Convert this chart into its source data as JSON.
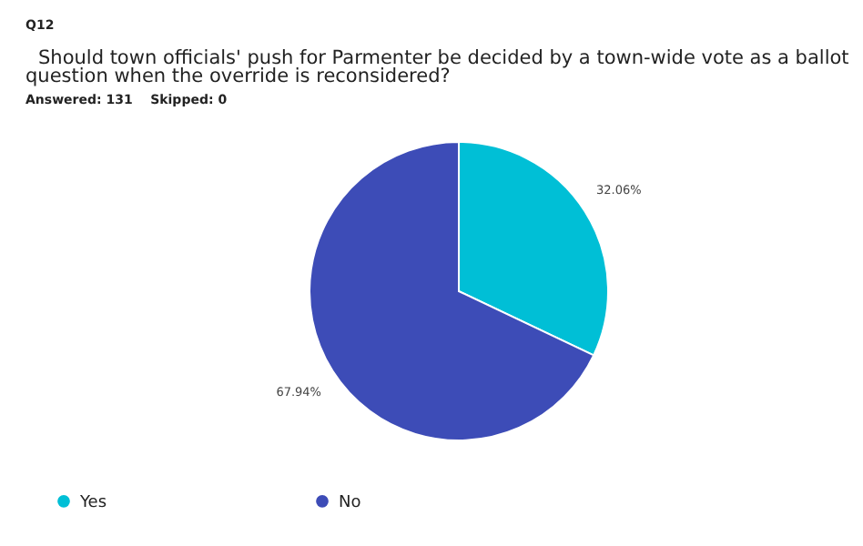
{
  "chart_data": {
    "type": "pie",
    "title": "Q12",
    "subtitle": "Should town officials' push for Parmenter be decided by a town-wide vote as a ballot question when the override is reconsidered?",
    "annotations": [
      "Answered: 131    Skipped: 0"
    ],
    "categories": [
      "Yes",
      "No"
    ],
    "values": [
      32.06,
      67.94
    ],
    "colors": [
      "#00bfd6",
      "#3d4cb7"
    ],
    "value_labels": [
      "32.06%",
      "67.94%"
    ],
    "legend": "bottom"
  }
}
